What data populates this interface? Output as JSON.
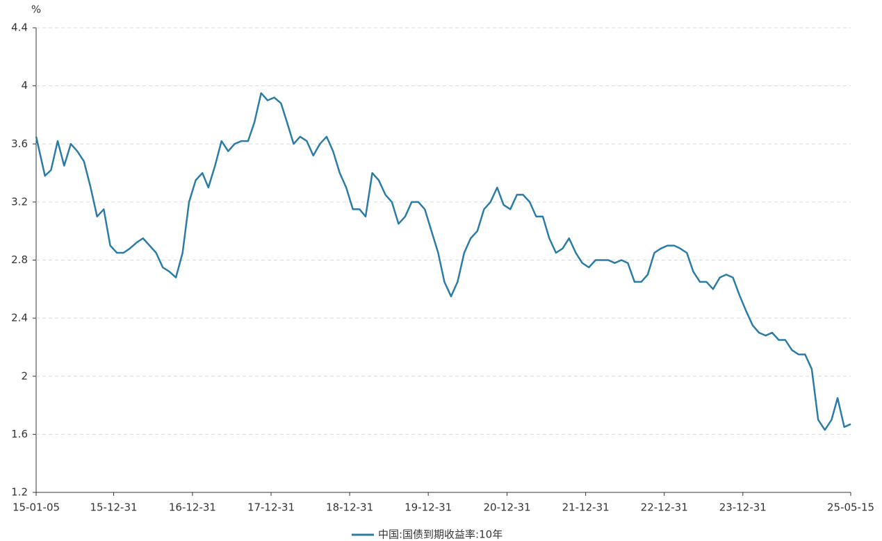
{
  "chart_data": {
    "type": "line",
    "y_unit": "%",
    "x": [
      "15-01-05",
      "15-02-15",
      "15-03-15",
      "15-04-15",
      "15-05-15",
      "15-06-15",
      "15-07-15",
      "15-08-15",
      "15-09-15",
      "15-10-15",
      "15-11-15",
      "15-12-15",
      "16-01-15",
      "16-02-15",
      "16-03-15",
      "16-04-15",
      "16-05-15",
      "16-06-15",
      "16-07-15",
      "16-08-15",
      "16-09-15",
      "16-10-15",
      "16-11-15",
      "16-12-15",
      "17-01-15",
      "17-02-15",
      "17-03-15",
      "17-04-15",
      "17-05-15",
      "17-06-15",
      "17-07-15",
      "17-08-15",
      "17-09-15",
      "17-10-15",
      "17-11-15",
      "17-12-15",
      "18-01-15",
      "18-02-15",
      "18-03-15",
      "18-04-15",
      "18-05-15",
      "18-06-15",
      "18-07-15",
      "18-08-15",
      "18-09-15",
      "18-10-15",
      "18-11-15",
      "18-12-15",
      "19-01-15",
      "19-02-15",
      "19-03-15",
      "19-04-15",
      "19-05-15",
      "19-06-15",
      "19-07-15",
      "19-08-15",
      "19-09-15",
      "19-10-15",
      "19-11-15",
      "19-12-15",
      "20-01-15",
      "20-02-15",
      "20-03-15",
      "20-04-15",
      "20-05-15",
      "20-06-15",
      "20-07-15",
      "20-08-15",
      "20-09-15",
      "20-10-15",
      "20-11-15",
      "20-12-15",
      "21-01-15",
      "21-02-15",
      "21-03-15",
      "21-04-15",
      "21-05-15",
      "21-06-15",
      "21-07-15",
      "21-08-15",
      "21-09-15",
      "21-10-15",
      "21-11-15",
      "21-12-15",
      "22-01-15",
      "22-02-15",
      "22-03-15",
      "22-04-15",
      "22-05-15",
      "22-06-15",
      "22-07-15",
      "22-08-15",
      "22-09-15",
      "22-10-15",
      "22-11-15",
      "22-12-15",
      "23-01-15",
      "23-02-15",
      "23-03-15",
      "23-04-15",
      "23-05-15",
      "23-06-15",
      "23-07-15",
      "23-08-15",
      "23-09-15",
      "23-10-15",
      "23-11-15",
      "23-12-15",
      "24-01-15",
      "24-02-15",
      "24-03-15",
      "24-04-15",
      "24-05-15",
      "24-06-15",
      "24-07-15",
      "24-08-15",
      "24-09-15",
      "24-10-15",
      "24-11-15",
      "24-12-15",
      "25-01-15",
      "25-02-15",
      "25-03-15",
      "25-04-15",
      "25-05-15"
    ],
    "series": [
      {
        "name": "中国:国债到期收益率:10年",
        "color": "#2a7ca6",
        "values": [
          3.65,
          3.38,
          3.42,
          3.62,
          3.45,
          3.6,
          3.55,
          3.48,
          3.3,
          3.1,
          3.15,
          2.9,
          2.85,
          2.85,
          2.88,
          2.92,
          2.95,
          2.9,
          2.85,
          2.75,
          2.72,
          2.68,
          2.85,
          3.2,
          3.35,
          3.4,
          3.3,
          3.45,
          3.62,
          3.55,
          3.6,
          3.62,
          3.62,
          3.75,
          3.95,
          3.9,
          3.92,
          3.88,
          3.75,
          3.6,
          3.65,
          3.62,
          3.52,
          3.6,
          3.65,
          3.55,
          3.4,
          3.3,
          3.15,
          3.15,
          3.1,
          3.4,
          3.35,
          3.25,
          3.2,
          3.05,
          3.1,
          3.2,
          3.2,
          3.15,
          3.0,
          2.85,
          2.65,
          2.55,
          2.65,
          2.85,
          2.95,
          3.0,
          3.15,
          3.2,
          3.3,
          3.18,
          3.15,
          3.25,
          3.25,
          3.2,
          3.1,
          3.1,
          2.95,
          2.85,
          2.88,
          2.95,
          2.85,
          2.78,
          2.75,
          2.8,
          2.8,
          2.8,
          2.78,
          2.8,
          2.78,
          2.65,
          2.65,
          2.7,
          2.85,
          2.88,
          2.9,
          2.9,
          2.88,
          2.85,
          2.72,
          2.65,
          2.65,
          2.6,
          2.68,
          2.7,
          2.68,
          2.56,
          2.45,
          2.35,
          2.3,
          2.28,
          2.3,
          2.25,
          2.25,
          2.18,
          2.15,
          2.15,
          2.05,
          1.7,
          1.63,
          1.7,
          1.85,
          1.65,
          1.67
        ]
      }
    ],
    "xlim": [
      "15-01-05",
      "25-05-15"
    ],
    "xticks": [
      "15-01-05",
      "15-12-31",
      "16-12-31",
      "17-12-31",
      "18-12-31",
      "19-12-31",
      "20-12-31",
      "21-12-31",
      "22-12-31",
      "23-12-31",
      "25-05-15"
    ],
    "ylim": [
      1.2,
      4.4
    ],
    "yticks": [
      1.2,
      1.6,
      2,
      2.4,
      2.8,
      3.2,
      3.6,
      4,
      4.4
    ],
    "grid": true
  }
}
